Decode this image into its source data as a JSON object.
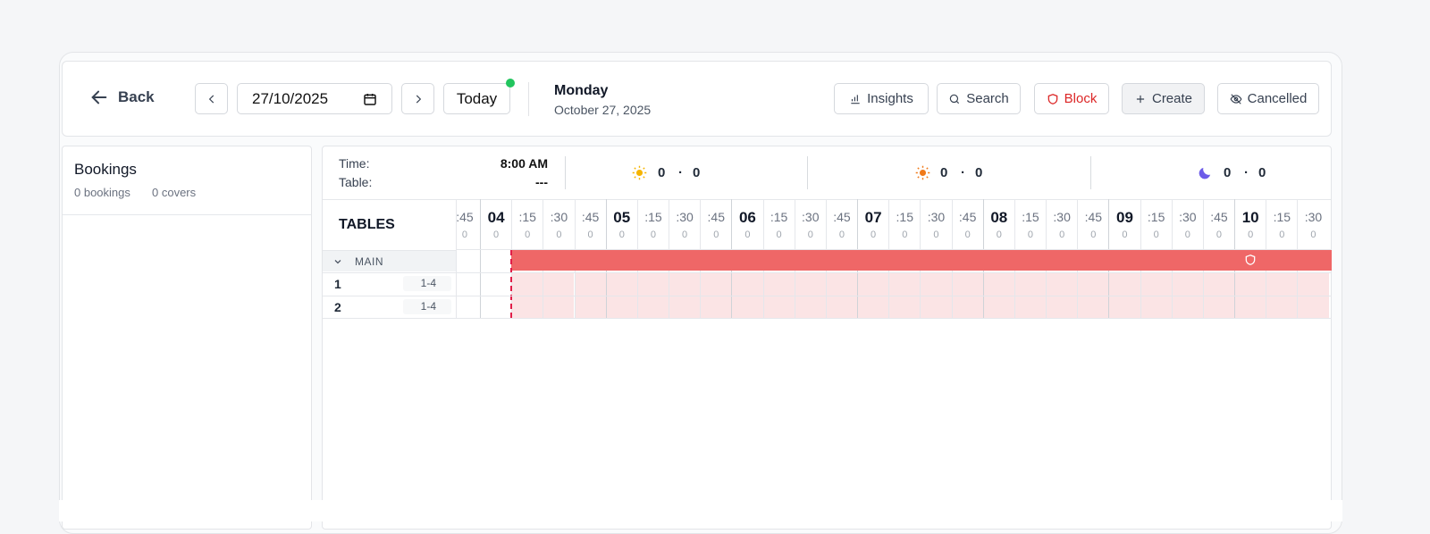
{
  "toolbar": {
    "back": "Back",
    "date": "27/10/2025",
    "today": "Today",
    "day": "Monday",
    "full_date": "October 27, 2025",
    "actions": [
      "Insights",
      "Search",
      "Block",
      "Create",
      "Cancelled"
    ]
  },
  "bookings": {
    "title": "Bookings",
    "bookings": "0 bookings",
    "covers": "0 covers"
  },
  "summary": {
    "time_label": "Time:",
    "time": "8:00 AM",
    "table_label": "Table:",
    "table": "---",
    "shifts": [
      {
        "bookings": 0,
        "covers": 0
      },
      {
        "bookings": 0,
        "covers": 0
      },
      {
        "bookings": 0,
        "covers": 0
      }
    ]
  },
  "timeline": {
    "header": "TABLES",
    "slots": [
      {
        "label": ":45",
        "count": 0
      },
      {
        "label": "04",
        "count": 0
      },
      {
        "label": ":15",
        "count": 0
      },
      {
        "label": ":30",
        "count": 0
      },
      {
        "label": ":45",
        "count": 0
      },
      {
        "label": "05",
        "count": 0
      },
      {
        "label": ":15",
        "count": 0
      },
      {
        "label": ":30",
        "count": 0
      },
      {
        "label": ":45",
        "count": 0
      },
      {
        "label": "06",
        "count": 0
      },
      {
        "label": ":15",
        "count": 0
      },
      {
        "label": ":30",
        "count": 0
      },
      {
        "label": ":45",
        "count": 0
      },
      {
        "label": "07",
        "count": 0
      },
      {
        "label": ":15",
        "count": 0
      },
      {
        "label": ":30",
        "count": 0
      },
      {
        "label": ":45",
        "count": 0
      },
      {
        "label": "08",
        "count": 0
      },
      {
        "label": ":15",
        "count": 0
      },
      {
        "label": ":30",
        "count": 0
      },
      {
        "label": ":45",
        "count": 0
      },
      {
        "label": "09",
        "count": 0
      },
      {
        "label": ":15",
        "count": 0
      },
      {
        "label": ":30",
        "count": 0
      },
      {
        "label": ":45",
        "count": 0
      },
      {
        "label": "10",
        "count": 0
      },
      {
        "label": ":15",
        "count": 0
      },
      {
        "label": ":30",
        "count": 0
      }
    ],
    "sections": [
      {
        "name": "MAIN",
        "tables": [
          {
            "name": "1",
            "capacity": "1-4"
          },
          {
            "name": "2",
            "capacity": "1-4"
          }
        ]
      }
    ]
  }
}
